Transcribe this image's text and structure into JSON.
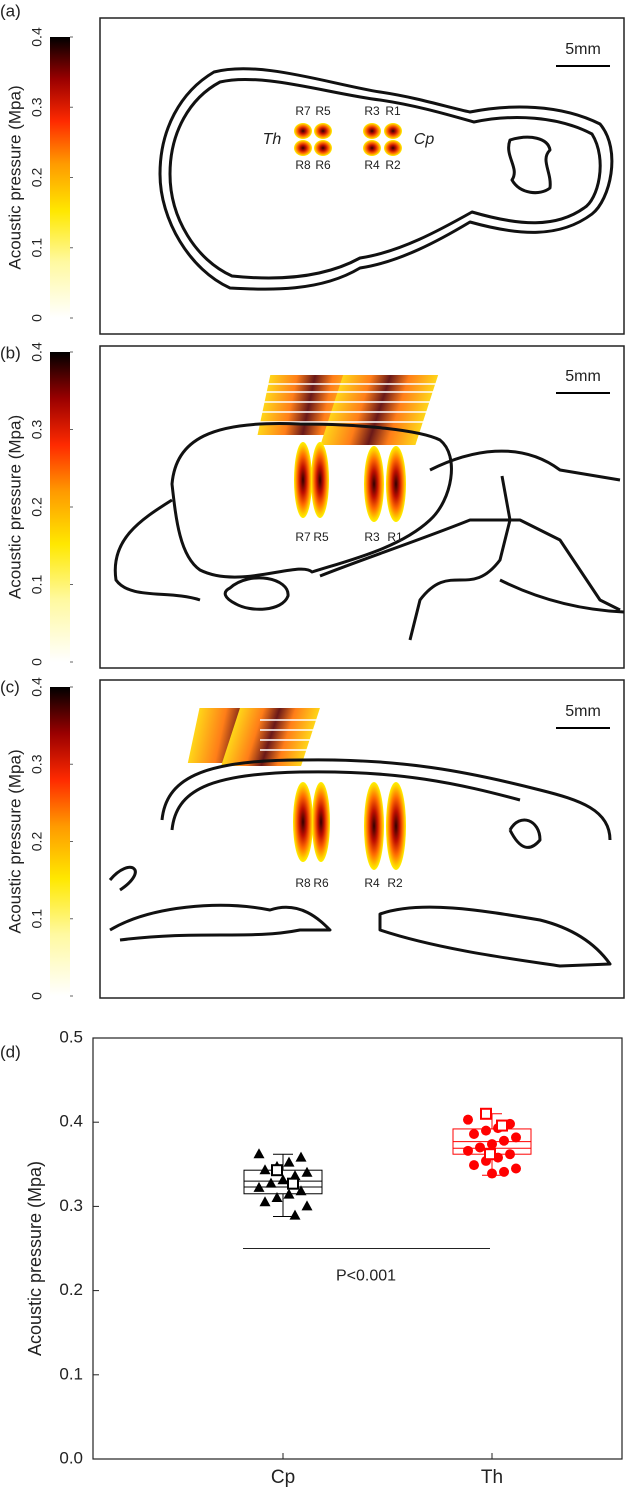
{
  "panels": [
    {
      "label": "(a)",
      "colorbar": {
        "label": "Acoustic pressure (Mpa)",
        "lim": [
          0,
          0.4
        ],
        "ticks": [
          0,
          0.1,
          0.2,
          0.3,
          0.4
        ]
      },
      "scale_bar": "5mm",
      "region_labels": [
        "R7",
        "R5",
        "R8",
        "R6",
        "R3",
        "R1",
        "R4",
        "R2"
      ],
      "side_labels": [
        "Th",
        "Cp"
      ]
    },
    {
      "label": "(b)",
      "colorbar": {
        "label": "Acoustic pressure (Mpa)",
        "lim": [
          0,
          0.4
        ],
        "ticks": [
          0,
          0.1,
          0.2,
          0.3,
          0.4
        ]
      },
      "scale_bar": "5mm",
      "region_labels": [
        "R7",
        "R5",
        "R3",
        "R1"
      ]
    },
    {
      "label": "(c)",
      "colorbar": {
        "label": "Acoustic pressure (Mpa)",
        "lim": [
          0,
          0.4
        ],
        "ticks": [
          0,
          0.1,
          0.2,
          0.3,
          0.4
        ]
      },
      "scale_bar": "5mm",
      "region_labels": [
        "R8",
        "R6",
        "R4",
        "R2"
      ]
    }
  ],
  "chart_data": {
    "type": "box",
    "label": "(d)",
    "ylabel": "Acoustic pressure (Mpa)",
    "categories": [
      "Cp",
      "Th"
    ],
    "ylim": [
      0,
      0.5
    ],
    "yticks": [
      {
        "value": 0,
        "label": "0.0"
      },
      0.1,
      0.2,
      0.3,
      0.4,
      0.5
    ],
    "series": [
      {
        "name": "Cp",
        "color": "#000000",
        "marker": "triangle",
        "values": [
          0.362,
          0.358,
          0.352,
          0.347,
          0.343,
          0.34,
          0.336,
          0.331,
          0.327,
          0.322,
          0.318,
          0.314,
          0.31,
          0.305,
          0.3,
          0.289
        ],
        "open_values": [
          0.343,
          0.327
        ],
        "box": {
          "whislo": 0.288,
          "q1": 0.315,
          "median": 0.323,
          "mean": 0.33,
          "q3": 0.343,
          "whishi": 0.362
        }
      },
      {
        "name": "Th",
        "color": "#ff0000",
        "marker": "circle",
        "values": [
          0.403,
          0.398,
          0.393,
          0.39,
          0.386,
          0.382,
          0.378,
          0.374,
          0.37,
          0.366,
          0.362,
          0.358,
          0.354,
          0.349,
          0.345,
          0.341,
          0.339
        ],
        "open_values": [
          0.41,
          0.396,
          0.362
        ],
        "box": {
          "whislo": 0.337,
          "q1": 0.362,
          "median": 0.369,
          "mean": 0.377,
          "q3": 0.392,
          "whishi": 0.41
        }
      }
    ],
    "annotation": {
      "text": "P<0.001",
      "y": 0.25
    }
  }
}
